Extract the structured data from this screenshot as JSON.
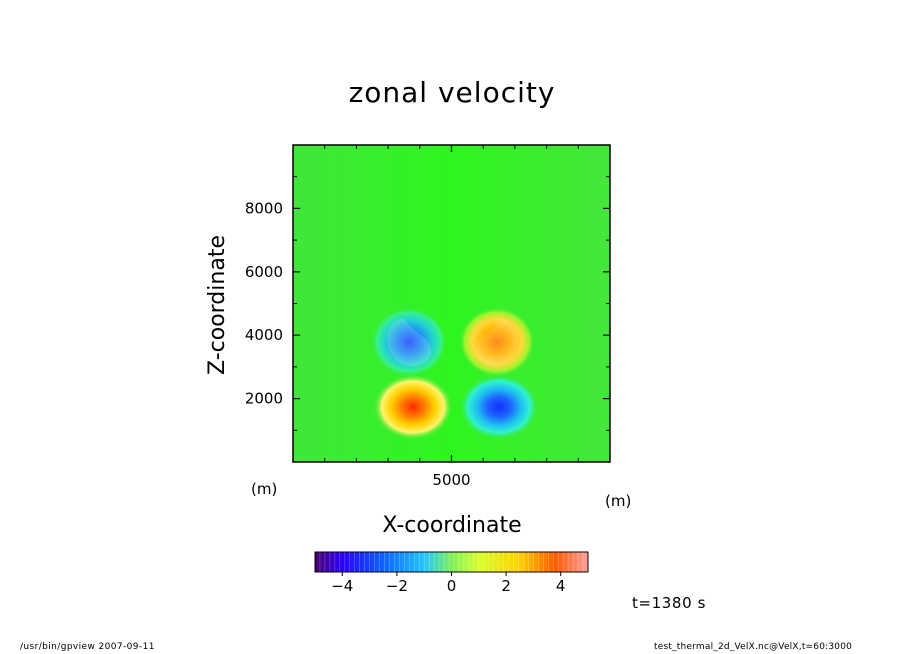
{
  "title": "zonal velocity",
  "axis_units": {
    "x": "(m)",
    "y": "(m)"
  },
  "time_label": "t=1380 s",
  "footer": {
    "left": "/usr/bin/gpview   2007-09-11",
    "right": "test_thermal_2d_VelX.nc@VelX,t=60:3000"
  },
  "chart_data": {
    "type": "heatmap",
    "title": "zonal velocity",
    "xlabel": "X-coordinate",
    "ylabel": "Z-coordinate",
    "x_range": [
      0,
      10000
    ],
    "y_range": [
      0,
      10000
    ],
    "x_ticks": [
      {
        "value": 5000,
        "label": "5000"
      }
    ],
    "y_ticks": [
      {
        "value": 2000,
        "label": "2000"
      },
      {
        "value": 4000,
        "label": "4000"
      },
      {
        "value": 6000,
        "label": "6000"
      },
      {
        "value": 8000,
        "label": "8000"
      }
    ],
    "features": [
      {
        "x": 3700,
        "z": 3900,
        "value": -3.2
      },
      {
        "x": 6300,
        "z": 3900,
        "value": 3.2
      },
      {
        "x": 3700,
        "z": 1800,
        "value": 4.2
      },
      {
        "x": 6300,
        "z": 1800,
        "value": -4.2
      }
    ],
    "colorbar": {
      "range": [
        -5,
        5
      ],
      "ticks": [
        {
          "value": -4,
          "label": "−4"
        },
        {
          "value": -2,
          "label": "−2"
        },
        {
          "value": 0,
          "label": "0"
        },
        {
          "value": 2,
          "label": "2"
        },
        {
          "value": 4,
          "label": "4"
        }
      ]
    },
    "grid": false
  }
}
